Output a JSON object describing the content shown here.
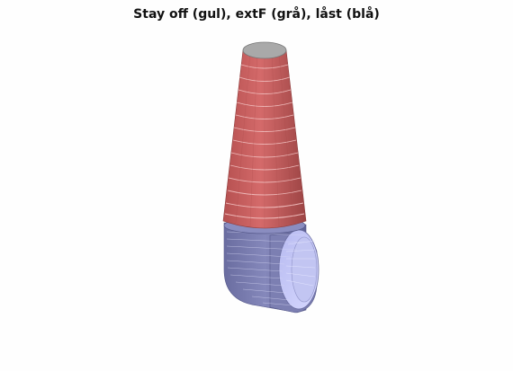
{
  "figure": {
    "title": "Stay off (gul), extF (grå), låst (blå)"
  },
  "colors": {
    "background": "#fefefe",
    "cone_red": "#c95f5f",
    "cone_red_dark": "#a84a4a",
    "cone_ring_highlight": "#f0b0b0",
    "top_cap_gray": "#a8a8a8",
    "elbow_blue": "#7f82b3",
    "elbow_blue_dark": "#5f6294",
    "elbow_inner_light": "#c9ccf5",
    "mesh_line": "#e8e8ff"
  },
  "scene": {
    "parts": [
      "top-cap",
      "red-tapered-cone",
      "blue-elbow-pipe"
    ]
  }
}
